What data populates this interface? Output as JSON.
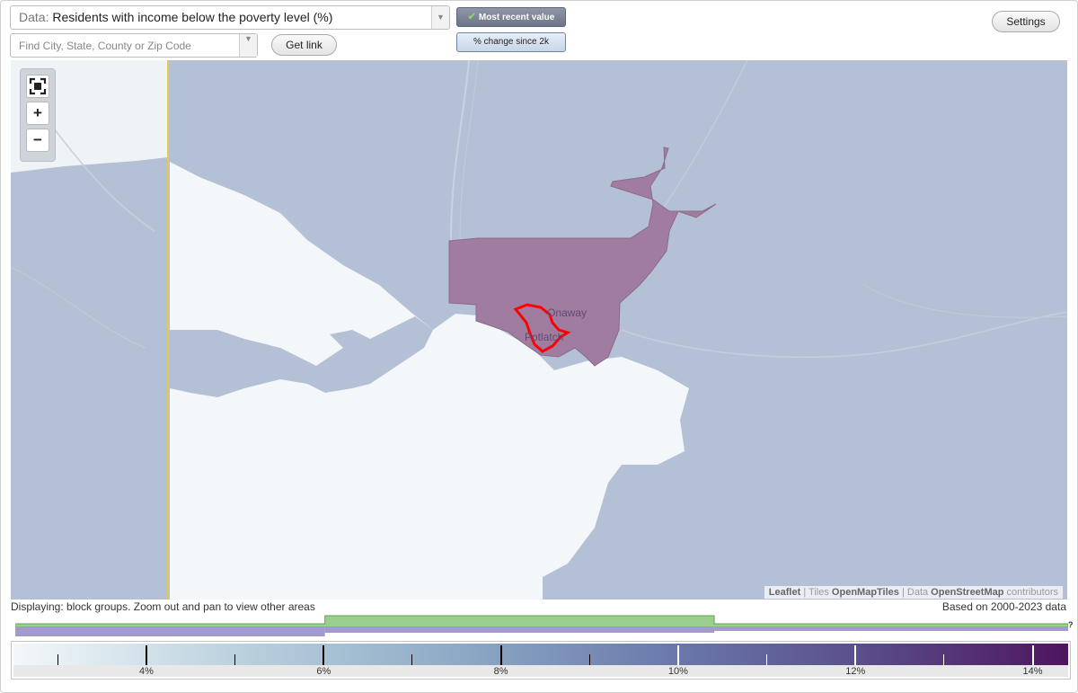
{
  "data_select": {
    "prefix": "Data:",
    "value": "Residents with income below the poverty level (%)"
  },
  "search": {
    "placeholder": "Find City, State, County or Zip Code"
  },
  "buttons": {
    "get_link": "Get link",
    "settings": "Settings",
    "most_recent": "Most recent value",
    "change_since": "% change since 2k"
  },
  "zoom": {
    "fullscreen": "",
    "plus": "+",
    "minus": "−"
  },
  "map": {
    "places": [
      "Onaway",
      "Potlatch"
    ],
    "attribution": {
      "leaflet": "Leaflet",
      "sep1": " | Tiles ",
      "tiles": "OpenMapTiles",
      "sep2": " | Data ",
      "data": "OpenStreetMap",
      "contrib": " contributors"
    }
  },
  "status": {
    "displaying": "Displaying: block groups. Zoom out and pan to view other areas",
    "based_on": "Based on 2000-2023 data"
  },
  "legend": {
    "labels": [
      "4%",
      "6%",
      "8%",
      "10%",
      "12%",
      "14%"
    ],
    "min": 2.5,
    "max": 14.4,
    "histogram": {
      "help": "?",
      "green_range": [
        6.0,
        10.4
      ],
      "purple_range": [
        2.6,
        10.4
      ]
    }
  },
  "colors": {
    "region_fill": "#a07ca0",
    "highlight": "#ff0000",
    "background_area": "#b4c0d6",
    "light_area": "#f4f7f9"
  }
}
